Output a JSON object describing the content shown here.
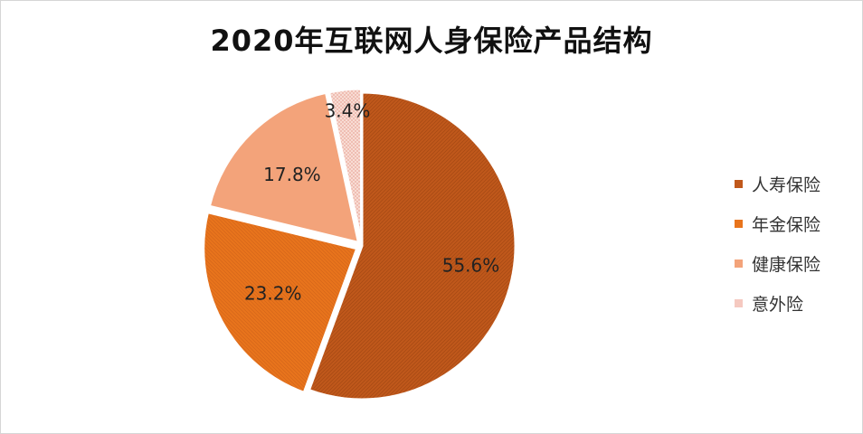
{
  "chart_data": {
    "type": "pie",
    "title": "2020年互联网人身保险产品结构",
    "categories": [
      "人寿保险",
      "年金保险",
      "健康保险",
      "意外险"
    ],
    "values": [
      55.6,
      23.2,
      17.8,
      3.4
    ],
    "data_labels": [
      "55.6%",
      "23.2%",
      "17.8%",
      "3.4%"
    ],
    "colors": [
      "#c0581b",
      "#e8741c",
      "#f3a37a",
      "#f5c9c0"
    ],
    "legend": "right",
    "start_angle_deg": 0,
    "direction": "clockwise"
  }
}
